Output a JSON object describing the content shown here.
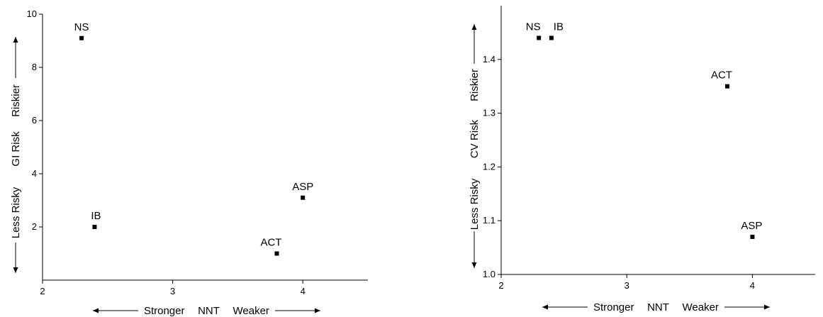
{
  "chart_data": [
    {
      "type": "scatter",
      "title": "",
      "xlim": [
        2,
        4.5
      ],
      "ylim": [
        0,
        10
      ],
      "xticks": [
        2,
        3,
        4
      ],
      "yticks": [
        2,
        4,
        6,
        8,
        10
      ],
      "xlabel": {
        "left": "Stronger",
        "center": "NNT",
        "right": "Weaker"
      },
      "ylabel": {
        "low": "Less Risky",
        "center": "GI Risk",
        "high": "Riskier"
      },
      "points": [
        {
          "label": "NS",
          "x": 2.3,
          "y": 9.1
        },
        {
          "label": "IB",
          "x": 2.4,
          "y": 2.0
        },
        {
          "label": "ASP",
          "x": 4.0,
          "y": 3.1
        },
        {
          "label": "ACT",
          "x": 3.8,
          "y": 1.0
        }
      ]
    },
    {
      "type": "scatter",
      "title": "",
      "xlim": [
        2,
        4.5
      ],
      "ylim": [
        1.0,
        1.5
      ],
      "xticks": [
        2,
        3,
        4
      ],
      "yticks": [
        1.0,
        1.1,
        1.2,
        1.3,
        1.4
      ],
      "xlabel": {
        "left": "Stronger",
        "center": "NNT",
        "right": "Weaker"
      },
      "ylabel": {
        "low": "Less Risky",
        "center": "CV Risk",
        "high": "Riskier"
      },
      "points": [
        {
          "label": "NS",
          "x": 2.3,
          "y": 1.44
        },
        {
          "label": "IB",
          "x": 2.4,
          "y": 1.44
        },
        {
          "label": "ACT",
          "x": 3.8,
          "y": 1.35
        },
        {
          "label": "ASP",
          "x": 4.0,
          "y": 1.07
        }
      ]
    }
  ]
}
